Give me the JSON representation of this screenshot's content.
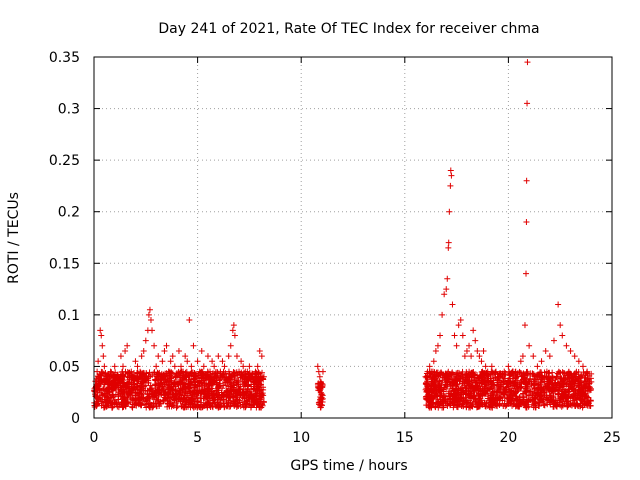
{
  "chart_data": {
    "type": "scatter",
    "title": "Day 241 of 2021, Rate Of TEC Index for receiver chma",
    "xlabel": "GPS time / hours",
    "ylabel": "ROTI / TECUs",
    "xlim": [
      0,
      25
    ],
    "ylim": [
      0,
      0.35
    ],
    "xticks": [
      "0",
      "5",
      "10",
      "15",
      "20",
      "25"
    ],
    "yticks": [
      "0",
      "0.05",
      "0.1",
      "0.15",
      "0.2",
      "0.25",
      "0.3",
      "0.35"
    ],
    "xtick_values": [
      0,
      5,
      10,
      15,
      20,
      25
    ],
    "ytick_values": [
      0,
      0.05,
      0.1,
      0.15,
      0.2,
      0.25,
      0.3,
      0.35
    ],
    "grid": true,
    "marker": "plus",
    "color": "#e00000",
    "series": [
      {
        "points": [
          [
            0.1,
            0.03
          ],
          [
            0.15,
            0.045
          ],
          [
            0.2,
            0.055
          ],
          [
            0.25,
            0.02
          ],
          [
            0.3,
            0.085
          ],
          [
            0.35,
            0.08
          ],
          [
            0.4,
            0.07
          ],
          [
            0.45,
            0.06
          ],
          [
            0.5,
            0.05
          ],
          [
            0.6,
            0.04
          ],
          [
            0.7,
            0.035
          ],
          [
            0.8,
            0.045
          ],
          [
            0.9,
            0.03
          ],
          [
            1.0,
            0.05
          ],
          [
            1.1,
            0.04
          ],
          [
            1.2,
            0.025
          ],
          [
            1.3,
            0.06
          ],
          [
            1.4,
            0.05
          ],
          [
            1.5,
            0.065
          ],
          [
            1.6,
            0.07
          ],
          [
            1.7,
            0.035
          ],
          [
            1.8,
            0.045
          ],
          [
            1.9,
            0.03
          ],
          [
            2.0,
            0.055
          ],
          [
            2.1,
            0.05
          ],
          [
            2.2,
            0.04
          ],
          [
            2.3,
            0.06
          ],
          [
            2.4,
            0.065
          ],
          [
            2.5,
            0.075
          ],
          [
            2.6,
            0.085
          ],
          [
            2.65,
            0.1
          ],
          [
            2.7,
            0.105
          ],
          [
            2.75,
            0.095
          ],
          [
            2.8,
            0.085
          ],
          [
            2.9,
            0.07
          ],
          [
            3.0,
            0.05
          ],
          [
            3.1,
            0.06
          ],
          [
            3.2,
            0.04
          ],
          [
            3.3,
            0.055
          ],
          [
            3.4,
            0.065
          ],
          [
            3.5,
            0.07
          ],
          [
            3.6,
            0.045
          ],
          [
            3.7,
            0.055
          ],
          [
            3.8,
            0.06
          ],
          [
            3.9,
            0.05
          ],
          [
            4.0,
            0.04
          ],
          [
            4.1,
            0.065
          ],
          [
            4.2,
            0.05
          ],
          [
            4.3,
            0.045
          ],
          [
            4.4,
            0.06
          ],
          [
            4.5,
            0.055
          ],
          [
            4.6,
            0.095
          ],
          [
            4.7,
            0.05
          ],
          [
            4.8,
            0.07
          ],
          [
            4.9,
            0.04
          ],
          [
            5.0,
            0.055
          ],
          [
            5.1,
            0.045
          ],
          [
            5.2,
            0.065
          ],
          [
            5.3,
            0.05
          ],
          [
            5.4,
            0.04
          ],
          [
            5.5,
            0.06
          ],
          [
            5.6,
            0.045
          ],
          [
            5.7,
            0.055
          ],
          [
            5.8,
            0.05
          ],
          [
            5.9,
            0.04
          ],
          [
            6.0,
            0.06
          ],
          [
            6.1,
            0.045
          ],
          [
            6.2,
            0.055
          ],
          [
            6.3,
            0.05
          ],
          [
            6.4,
            0.04
          ],
          [
            6.5,
            0.06
          ],
          [
            6.6,
            0.07
          ],
          [
            6.7,
            0.085
          ],
          [
            6.75,
            0.09
          ],
          [
            6.8,
            0.08
          ],
          [
            6.9,
            0.06
          ],
          [
            7.0,
            0.045
          ],
          [
            7.1,
            0.055
          ],
          [
            7.2,
            0.05
          ],
          [
            7.3,
            0.04
          ],
          [
            7.4,
            0.045
          ],
          [
            7.5,
            0.05
          ],
          [
            7.6,
            0.04
          ],
          [
            7.7,
            0.035
          ],
          [
            7.8,
            0.045
          ],
          [
            7.9,
            0.05
          ],
          [
            8.0,
            0.065
          ],
          [
            8.1,
            0.06
          ],
          [
            8.2,
            0.04
          ],
          [
            10.8,
            0.05
          ],
          [
            10.85,
            0.045
          ],
          [
            10.9,
            0.04
          ],
          [
            10.95,
            0.035
          ],
          [
            11.0,
            0.03
          ],
          [
            11.05,
            0.045
          ],
          [
            16.0,
            0.04
          ],
          [
            16.1,
            0.045
          ],
          [
            16.2,
            0.05
          ],
          [
            16.3,
            0.04
          ],
          [
            16.4,
            0.055
          ],
          [
            16.5,
            0.065
          ],
          [
            16.6,
            0.07
          ],
          [
            16.7,
            0.08
          ],
          [
            16.8,
            0.1
          ],
          [
            16.9,
            0.12
          ],
          [
            17.0,
            0.125
          ],
          [
            17.05,
            0.135
          ],
          [
            17.1,
            0.165
          ],
          [
            17.12,
            0.17
          ],
          [
            17.15,
            0.2
          ],
          [
            17.2,
            0.225
          ],
          [
            17.22,
            0.24
          ],
          [
            17.25,
            0.235
          ],
          [
            17.3,
            0.11
          ],
          [
            17.4,
            0.08
          ],
          [
            17.5,
            0.07
          ],
          [
            17.6,
            0.09
          ],
          [
            17.7,
            0.095
          ],
          [
            17.8,
            0.08
          ],
          [
            17.9,
            0.06
          ],
          [
            18.0,
            0.065
          ],
          [
            18.1,
            0.07
          ],
          [
            18.2,
            0.06
          ],
          [
            18.3,
            0.085
          ],
          [
            18.4,
            0.075
          ],
          [
            18.5,
            0.065
          ],
          [
            18.6,
            0.06
          ],
          [
            18.7,
            0.055
          ],
          [
            18.8,
            0.065
          ],
          [
            18.9,
            0.05
          ],
          [
            19.0,
            0.045
          ],
          [
            19.2,
            0.05
          ],
          [
            19.4,
            0.045
          ],
          [
            19.6,
            0.04
          ],
          [
            19.8,
            0.045
          ],
          [
            20.0,
            0.05
          ],
          [
            20.2,
            0.045
          ],
          [
            20.4,
            0.04
          ],
          [
            20.6,
            0.055
          ],
          [
            20.7,
            0.06
          ],
          [
            20.8,
            0.09
          ],
          [
            20.85,
            0.14
          ],
          [
            20.87,
            0.19
          ],
          [
            20.88,
            0.23
          ],
          [
            20.9,
            0.305
          ],
          [
            20.92,
            0.345
          ],
          [
            21.0,
            0.07
          ],
          [
            21.2,
            0.06
          ],
          [
            21.4,
            0.05
          ],
          [
            21.6,
            0.055
          ],
          [
            21.8,
            0.065
          ],
          [
            22.0,
            0.06
          ],
          [
            22.2,
            0.075
          ],
          [
            22.4,
            0.11
          ],
          [
            22.5,
            0.09
          ],
          [
            22.6,
            0.08
          ],
          [
            22.8,
            0.07
          ],
          [
            23.0,
            0.065
          ],
          [
            23.2,
            0.06
          ],
          [
            23.4,
            0.055
          ],
          [
            23.6,
            0.05
          ],
          [
            23.8,
            0.045
          ],
          [
            24.0,
            0.035
          ]
        ]
      }
    ],
    "dense_bands": [
      {
        "x": [
          0.0,
          8.2
        ],
        "y": [
          0.01,
          0.045
        ]
      },
      {
        "x": [
          10.8,
          11.05
        ],
        "y": [
          0.01,
          0.035
        ]
      },
      {
        "x": [
          16.0,
          24.0
        ],
        "y": [
          0.01,
          0.045
        ]
      }
    ]
  }
}
